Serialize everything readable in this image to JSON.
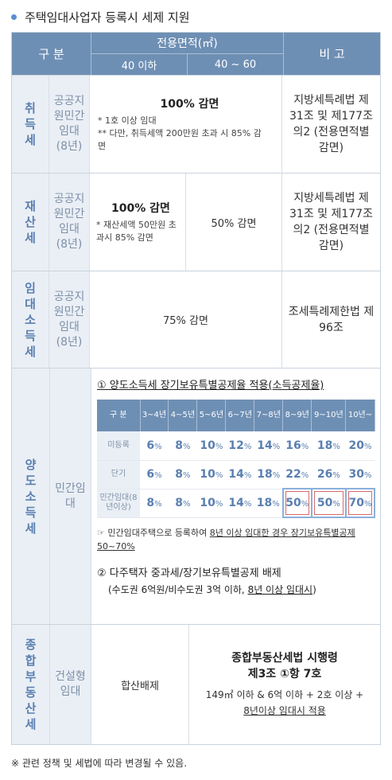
{
  "title": "주택임대사업자 등록시 세제 지원",
  "header": {
    "gubun": "구 분",
    "area": "전용면적(㎡)",
    "area_col1": "40 이하",
    "area_col2": "40 ~ 60",
    "bigo": "비 고"
  },
  "rows": {
    "acquisition": {
      "tax": "취득세",
      "type": "공공지원민간임대(8년)",
      "main": "100% 감면",
      "note1": "* 1호 이상 임대",
      "note2": "** 다만, 취득세액 200만원 초과 시 85% 감면",
      "remark": "지방세특례법 제31조 및 제177조의2 (전용면적별 감면)"
    },
    "property": {
      "tax": "재산세",
      "type": "공공지원민간임대(8년)",
      "main": "100% 감면",
      "note": "* 재산세액 50만원 초과시 85% 감면",
      "col2": "50% 감면",
      "remark": "지방세특례법 제31조 및 제177조의2 (전용면적별 감면)"
    },
    "income": {
      "tax": "임대소득세",
      "type": "공공지원민간임대(8년)",
      "main": "75% 감면",
      "remark": "조세특례제한법 제96조"
    },
    "transfer": {
      "tax": "양도소득세",
      "type": "민간임대",
      "item1": "① 양도소득세 장기보유특별공제율 적용(소득공제율)",
      "table": {
        "corner": "구 분",
        "periods": [
          "3~4년",
          "4~5년",
          "5~6년",
          "6~7년",
          "7~8년",
          "8~9년",
          "9~10년",
          "10년~"
        ],
        "rows": [
          {
            "label": "미등록",
            "values": [
              "6",
              "8",
              "10",
              "12",
              "14",
              "16",
              "18",
              "20"
            ]
          },
          {
            "label": "단기",
            "values": [
              "6",
              "8",
              "10",
              "14",
              "18",
              "22",
              "26",
              "30"
            ]
          },
          {
            "label": "민간임대(8년이상)",
            "values": [
              "8",
              "8",
              "10",
              "14",
              "18",
              "50",
              "50",
              "70"
            ]
          }
        ],
        "pct": "%"
      },
      "note_a": "☞ 민간임대주택으로 등록하여 ",
      "note_b": "8년 이상 임대한 경우 장기보유특별공제 50~70%",
      "item2": "② 다주택자 중과세/장기보유특별공제 배제",
      "item2_sub_a": "(수도권 6억원/비수도권 3억 이하, ",
      "item2_sub_b": "8년 이상 임대시",
      "item2_sub_c": ")"
    },
    "comprehensive": {
      "tax": "종합부동산세",
      "type": "건설형임대",
      "main": "합산배제",
      "remark_title1": "종합부동산세법 시행령",
      "remark_title2": "제3조 ①항 7호",
      "remark_text1": "149㎡ 이하 & 6억 이하 + 2호 이상 +",
      "remark_text2": "8년이상 임대시 적용"
    }
  },
  "footnote": "※ 관련 정책 및 세법에 따라 변경될 수 있음."
}
